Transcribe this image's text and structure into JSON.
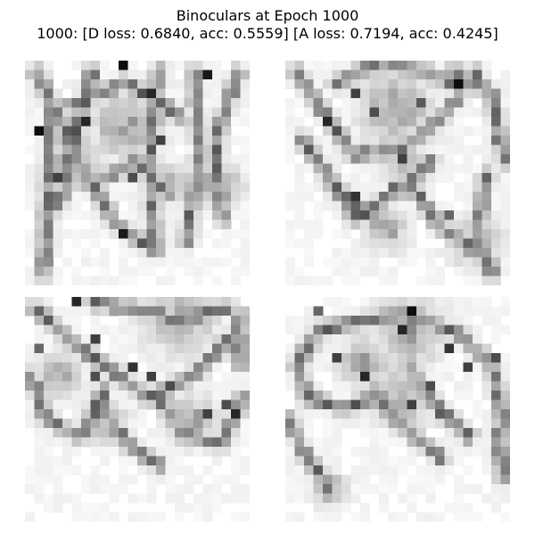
{
  "figure": {
    "title_line1": "Binoculars at Epoch 1000",
    "title_line2": "1000: [D loss: 0.6840, acc: 0.5559]  [A loss: 0.7194, acc: 0.4245]"
  },
  "samples": [
    {
      "strokes": [
        [
          0.05,
          0.05,
          0.22,
          0.4
        ],
        [
          0.22,
          0.4,
          0.4,
          0.72
        ],
        [
          0.4,
          0.72,
          0.58,
          0.85
        ],
        [
          0.08,
          0.95,
          0.1,
          0.6
        ],
        [
          0.1,
          0.6,
          0.12,
          0.2
        ],
        [
          0.3,
          0.05,
          0.22,
          0.35
        ],
        [
          0.22,
          0.35,
          0.15,
          0.65
        ],
        [
          0.6,
          0.05,
          0.55,
          0.45
        ],
        [
          0.55,
          0.45,
          0.58,
          0.85
        ],
        [
          0.75,
          0.05,
          0.78,
          0.4
        ],
        [
          0.78,
          0.4,
          0.72,
          0.8
        ],
        [
          0.95,
          0.05,
          0.85,
          0.35
        ],
        [
          0.85,
          0.35,
          0.88,
          0.7
        ],
        [
          0.2,
          0.2,
          0.45,
          0.1
        ],
        [
          0.45,
          0.1,
          0.7,
          0.25
        ],
        [
          0.3,
          0.55,
          0.5,
          0.45
        ],
        [
          0.5,
          0.45,
          0.65,
          0.6
        ]
      ],
      "blobs": [
        [
          0.45,
          0.3,
          0.16
        ],
        [
          0.22,
          0.45,
          0.13
        ],
        [
          0.85,
          0.55,
          0.12
        ],
        [
          0.62,
          0.55,
          0.1
        ]
      ],
      "dark_cells": [
        [
          10,
          0,
          0.95
        ],
        [
          1,
          7,
          0.95
        ],
        [
          6,
          6,
          0.85
        ],
        [
          10,
          18,
          0.9
        ],
        [
          13,
          3,
          0.85
        ],
        [
          14,
          8,
          0.75
        ],
        [
          19,
          1,
          0.9
        ],
        [
          11,
          12,
          0.7
        ],
        [
          3,
          12,
          0.75
        ],
        [
          17,
          16,
          0.65
        ]
      ]
    },
    {
      "strokes": [
        [
          0.05,
          0.05,
          0.22,
          0.3
        ],
        [
          0.22,
          0.3,
          0.3,
          0.42
        ],
        [
          0.3,
          0.42,
          0.5,
          0.4
        ],
        [
          0.5,
          0.4,
          0.7,
          0.25
        ],
        [
          0.7,
          0.25,
          0.85,
          0.05
        ],
        [
          0.22,
          0.1,
          0.4,
          0.02
        ],
        [
          0.4,
          0.02,
          0.62,
          0.05
        ],
        [
          0.62,
          0.05,
          0.75,
          0.1
        ],
        [
          0.08,
          0.35,
          0.25,
          0.6
        ],
        [
          0.25,
          0.6,
          0.4,
          0.72
        ],
        [
          0.75,
          0.05,
          0.92,
          0.15
        ],
        [
          0.92,
          0.15,
          0.98,
          0.45
        ],
        [
          0.65,
          0.45,
          0.5,
          0.58
        ],
        [
          0.5,
          0.58,
          0.3,
          0.7
        ],
        [
          0.55,
          0.55,
          0.7,
          0.75
        ],
        [
          0.7,
          0.75,
          0.9,
          0.88
        ],
        [
          0.9,
          0.5,
          0.85,
          0.75
        ],
        [
          0.85,
          0.75,
          0.92,
          0.95
        ]
      ],
      "blobs": [
        [
          0.5,
          0.22,
          0.18
        ],
        [
          0.55,
          0.48,
          0.1
        ],
        [
          0.85,
          0.8,
          0.12
        ],
        [
          0.45,
          0.75,
          0.1
        ]
      ],
      "dark_cells": [
        [
          18,
          2,
          0.95
        ],
        [
          7,
          3,
          0.75
        ],
        [
          4,
          6,
          0.85
        ],
        [
          9,
          5,
          0.7
        ],
        [
          12,
          10,
          0.75
        ],
        [
          7,
          14,
          0.8
        ],
        [
          14,
          4,
          0.65
        ],
        [
          11,
          13,
          0.6
        ],
        [
          22,
          8,
          0.55
        ],
        [
          17,
          16,
          0.6
        ]
      ]
    },
    {
      "strokes": [
        [
          0.05,
          0.05,
          0.2,
          0.2
        ],
        [
          0.2,
          0.2,
          0.35,
          0.3
        ],
        [
          0.35,
          0.3,
          0.55,
          0.45
        ],
        [
          0.55,
          0.45,
          0.75,
          0.35
        ],
        [
          0.75,
          0.35,
          0.95,
          0.15
        ],
        [
          0.3,
          0.02,
          0.45,
          0.05
        ],
        [
          0.45,
          0.05,
          0.7,
          0.1
        ],
        [
          0.7,
          0.1,
          0.9,
          0.05
        ],
        [
          0.03,
          0.35,
          0.1,
          0.55
        ],
        [
          0.1,
          0.55,
          0.25,
          0.62
        ],
        [
          0.25,
          0.62,
          0.35,
          0.42
        ],
        [
          0.6,
          0.45,
          0.7,
          0.62
        ],
        [
          0.7,
          0.62,
          0.88,
          0.65
        ],
        [
          0.88,
          0.65,
          0.97,
          0.45
        ],
        [
          0.35,
          0.5,
          0.45,
          0.65
        ],
        [
          0.45,
          0.65,
          0.6,
          0.75
        ],
        [
          0.95,
          0.08,
          0.96,
          0.3
        ]
      ],
      "blobs": [
        [
          0.68,
          0.1,
          0.16
        ],
        [
          0.35,
          0.55,
          0.1
        ],
        [
          0.75,
          0.55,
          0.12
        ],
        [
          0.15,
          0.35,
          0.1
        ]
      ],
      "dark_cells": [
        [
          5,
          0,
          0.85
        ],
        [
          7,
          4,
          0.75
        ],
        [
          11,
          7,
          0.8
        ],
        [
          13,
          8,
          0.75
        ],
        [
          15,
          9,
          0.7
        ],
        [
          19,
          12,
          0.75
        ],
        [
          21,
          11,
          0.7
        ],
        [
          22,
          12,
          0.85
        ],
        [
          7,
          8,
          0.7
        ],
        [
          1,
          5,
          0.6
        ]
      ]
    },
    {
      "strokes": [
        [
          0.05,
          0.3,
          0.15,
          0.15
        ],
        [
          0.15,
          0.15,
          0.35,
          0.1
        ],
        [
          0.35,
          0.1,
          0.55,
          0.08
        ],
        [
          0.55,
          0.08,
          0.75,
          0.15
        ],
        [
          0.75,
          0.15,
          0.92,
          0.3
        ],
        [
          0.92,
          0.3,
          0.97,
          0.55
        ],
        [
          0.05,
          0.3,
          0.1,
          0.45
        ],
        [
          0.1,
          0.45,
          0.28,
          0.5
        ],
        [
          0.28,
          0.5,
          0.42,
          0.42
        ],
        [
          0.55,
          0.3,
          0.68,
          0.5
        ],
        [
          0.68,
          0.5,
          0.82,
          0.62
        ],
        [
          0.4,
          0.45,
          0.55,
          0.6
        ],
        [
          0.55,
          0.6,
          0.7,
          0.72
        ],
        [
          0.02,
          0.55,
          0.1,
          0.72
        ],
        [
          0.1,
          0.72,
          0.2,
          0.85
        ],
        [
          0.95,
          0.6,
          0.97,
          0.8
        ]
      ],
      "blobs": [
        [
          0.55,
          0.15,
          0.16
        ],
        [
          0.35,
          0.3,
          0.12
        ],
        [
          0.52,
          0.45,
          0.14
        ],
        [
          0.2,
          0.85,
          0.08
        ]
      ],
      "dark_cells": [
        [
          13,
          1,
          0.95
        ],
        [
          12,
          3,
          0.85
        ],
        [
          8,
          8,
          0.85
        ],
        [
          17,
          5,
          0.8
        ],
        [
          19,
          7,
          0.75
        ],
        [
          5,
          6,
          0.75
        ],
        [
          13,
          11,
          0.75
        ],
        [
          15,
          9,
          0.7
        ],
        [
          3,
          1,
          0.6
        ],
        [
          22,
          6,
          0.7
        ]
      ]
    }
  ]
}
